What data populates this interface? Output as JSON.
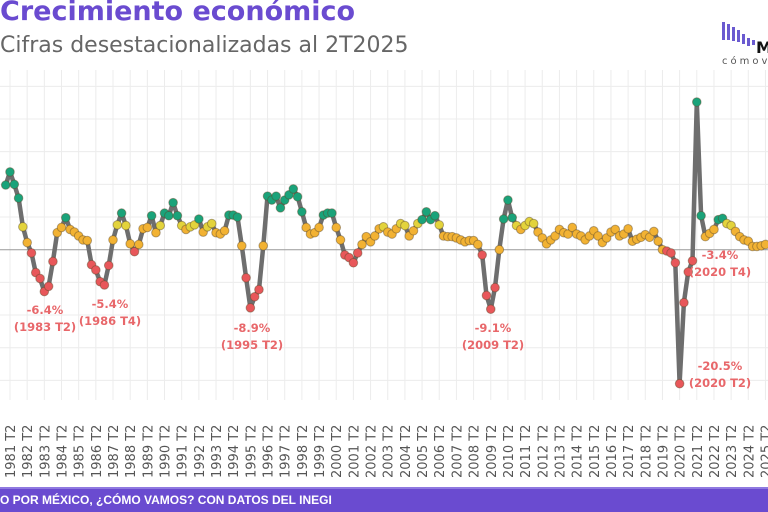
{
  "header": {
    "title": "Crecimiento económico",
    "subtitle": "Cifras desestacionalizadas al 2T2025"
  },
  "logo": {
    "mark": "M",
    "text": "cómov"
  },
  "footer": {
    "text": "O POR MÉXICO, ¿CÓMO VAMOS? CON DATOS DEL INEGI"
  },
  "chart_data": {
    "type": "line",
    "title": "Crecimiento económico",
    "subtitle": "Cifras desestacionalizadas al 2T2025",
    "xlabel": "",
    "ylabel": "",
    "ylim": [
      -23,
      27.5
    ],
    "grid": true,
    "start": "1981 T1",
    "tick_labels": [
      "1981 T2",
      "1982 T2",
      "1983 T2",
      "1984 T2",
      "1985 T2",
      "1986 T2",
      "1987 T2",
      "1988 T2",
      "1989 T2",
      "1990 T2",
      "1991 T2",
      "1992 T2",
      "1993 T2",
      "1994 T2",
      "1995 T2",
      "1996 T2",
      "1997 T2",
      "1998 T2",
      "1999 T2",
      "2000 T2",
      "2001 T2",
      "2002 T2",
      "2003 T2",
      "2004 T2",
      "2005 T2",
      "2006 T2",
      "2007 T2",
      "2008 T2",
      "2009 T2",
      "2010 T2",
      "2011 T2",
      "2012 T2",
      "2013 T2",
      "2014 T2",
      "2015 T2",
      "2016 T2",
      "2017 T2",
      "2018 T2",
      "2019 T2",
      "2020 T2",
      "2021 T2",
      "2022 T2",
      "2023 T2",
      "2024 T2",
      "2025 T2"
    ],
    "values": [
      9.9,
      11.9,
      10.0,
      7.9,
      3.5,
      1.1,
      -0.5,
      -3.5,
      -4.4,
      -6.4,
      -5.6,
      -1.8,
      2.6,
      3.4,
      4.9,
      3.1,
      2.7,
      2.1,
      1.5,
      1.4,
      -2.3,
      -3.1,
      -4.9,
      -5.4,
      -2.4,
      1.5,
      3.8,
      5.6,
      3.7,
      0.9,
      -0.3,
      0.8,
      3.2,
      3.4,
      5.2,
      2.6,
      3.7,
      5.6,
      5.2,
      7.2,
      5.2,
      3.7,
      3.1,
      3.5,
      3.8,
      4.7,
      2.7,
      3.5,
      4.0,
      2.6,
      2.4,
      2.9,
      5.3,
      5.3,
      5.0,
      0.6,
      -4.3,
      -8.9,
      -7.2,
      -6.1,
      0.6,
      8.2,
      7.6,
      8.2,
      6.4,
      7.6,
      8.4,
      9.3,
      8.1,
      5.8,
      3.4,
      2.4,
      2.6,
      3.4,
      5.3,
      5.6,
      5.6,
      3.4,
      1.5,
      -0.8,
      -1.2,
      -2.0,
      -0.5,
      0.8,
      2.0,
      1.2,
      2.1,
      3.2,
      3.5,
      2.7,
      2.4,
      3.2,
      4.0,
      3.7,
      2.1,
      2.9,
      4.0,
      4.6,
      5.8,
      4.6,
      5.2,
      3.8,
      2.1,
      2.0,
      2.0,
      1.8,
      1.5,
      1.2,
      1.4,
      1.4,
      0.8,
      -0.8,
      -7.0,
      -9.1,
      -5.8,
      0.0,
      4.7,
      7.6,
      4.9,
      3.7,
      3.1,
      3.7,
      4.3,
      4.0,
      2.7,
      1.8,
      0.9,
      1.5,
      2.1,
      3.1,
      2.6,
      2.4,
      3.4,
      2.4,
      2.1,
      1.5,
      2.1,
      2.9,
      2.1,
      1.1,
      1.8,
      2.7,
      3.1,
      2.1,
      2.4,
      3.2,
      1.3,
      1.6,
      1.9,
      2.3,
      1.9,
      2.8,
      1.3,
      0.0,
      -0.2,
      -0.5,
      -2.0,
      -20.5,
      -8.1,
      -3.4,
      -1.7,
      22.6,
      5.2,
      2.0,
      2.5,
      3.1,
      4.6,
      4.8,
      4.0,
      3.7,
      2.8,
      2.0,
      1.5,
      1.3,
      0.5,
      0.5,
      0.6,
      0.8
    ],
    "annotations": [
      {
        "label": "-6.4%",
        "period": "(1983 T2)",
        "value": -6.4
      },
      {
        "label": "-5.4%",
        "period": "(1986 T4)",
        "value": -5.4
      },
      {
        "label": "-8.9%",
        "period": "(1995 T2)",
        "value": -8.9
      },
      {
        "label": "-9.1%",
        "period": "(2009 T2)",
        "value": -9.1
      },
      {
        "label": "-20.5%",
        "period": "(2020 T2)",
        "value": -20.5
      },
      {
        "label": "-3.4%",
        "period": "(2020 T4)",
        "value": -3.4
      }
    ],
    "colors": {
      "high": "#1aa37a",
      "mid": "#e3d33c",
      "low": "#f2b233",
      "negative": "#e8575a",
      "line": "#6e6e6e",
      "accent": "#6a4bd0"
    },
    "color_thresholds": {
      "high": 4.5,
      "mid": 3.5,
      "low": 0
    }
  }
}
